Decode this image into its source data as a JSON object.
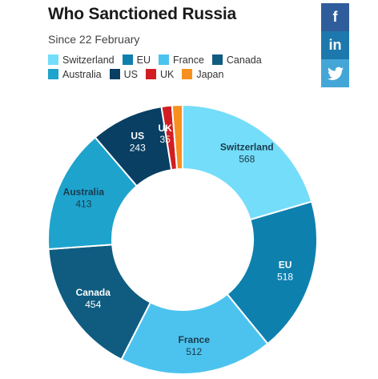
{
  "header": {
    "title": "Who Sanctioned Russia",
    "subtitle": "Since 22 February"
  },
  "social": {
    "facebook_label": "f",
    "linkedin_label": "in",
    "colors": {
      "facebook": "#2f5d9c",
      "linkedin": "#1d79ad",
      "twitter": "#44a6d6"
    }
  },
  "chart_data": {
    "type": "pie",
    "variant": "donut",
    "legend_position": "top",
    "series": [
      {
        "name": "Switzerland",
        "value": 568,
        "color": "#74ddf9",
        "label_color": "#1a3a4a"
      },
      {
        "name": "EU",
        "value": 518,
        "color": "#0e80ae",
        "label_color": "#ffffff"
      },
      {
        "name": "France",
        "value": 512,
        "color": "#4cc3ee",
        "label_color": "#1a3a4a"
      },
      {
        "name": "Canada",
        "value": 454,
        "color": "#0f5c80",
        "label_color": "#ffffff"
      },
      {
        "name": "Australia",
        "value": 413,
        "color": "#1ea3cd",
        "label_color": "#1a3a4a"
      },
      {
        "name": "US",
        "value": 243,
        "color": "#083f63",
        "label_color": "#ffffff"
      },
      {
        "name": "UK",
        "value": 35,
        "color": "#d21e23",
        "label_color": "#ffffff"
      },
      {
        "name": "Japan",
        "value": 35,
        "color": "#f7901e",
        "label_color": "#ffffff"
      }
    ]
  }
}
